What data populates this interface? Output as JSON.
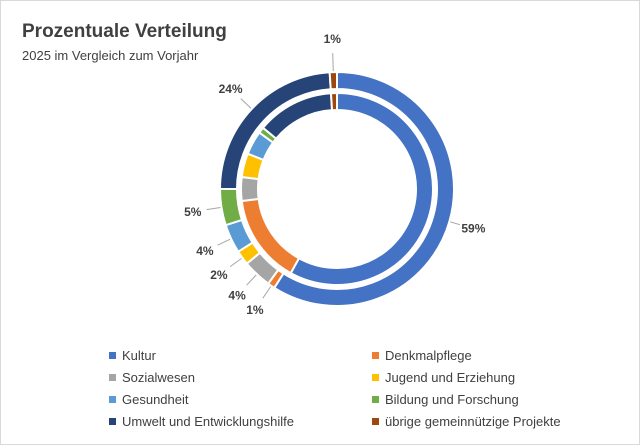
{
  "chart_data": {
    "type": "pie",
    "variant": "doughnut",
    "title": "Prozentuale Verteilung",
    "subtitle": "2025 im Vergleich zum Vorjahr",
    "categories": [
      "Kultur",
      "Denkmalpflege",
      "Sozialwesen",
      "Jugend  und Erziehung",
      "Gesundheit",
      "Bildung und Forschung",
      "Umwelt und Entwicklungshilfe",
      "übrige gemeinnützige Projekte"
    ],
    "colors": [
      "#4472c4",
      "#ed7d31",
      "#a5a5a5",
      "#ffc000",
      "#5b9bd5",
      "#70ad47",
      "#264478",
      "#9e480e"
    ],
    "series": [
      {
        "name": "2025",
        "ring": "outer",
        "values": [
          59,
          1,
          4,
          2,
          4,
          5,
          24,
          1
        ],
        "labels": [
          "59%",
          "1%",
          "4%",
          "2%",
          "4%",
          "5%",
          "24%",
          "1%"
        ]
      },
      {
        "name": "Vorjahr",
        "ring": "inner",
        "values": [
          58,
          15,
          4,
          4,
          4,
          1,
          13,
          1
        ]
      }
    ],
    "legend_position": "bottom"
  }
}
